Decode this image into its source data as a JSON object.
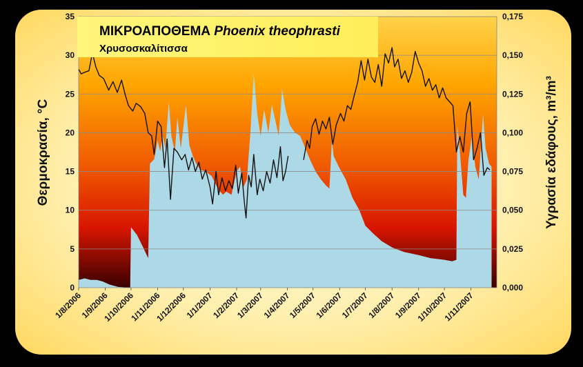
{
  "chart_data": {
    "type": "area",
    "title": "ΜΙΚΡΟΑΠΟΘΕΜΑ",
    "title_species": "Phoenix theophrasti",
    "subtitle": "Χρυσοσκαλίτισσα",
    "ylabel_left": "Θερμοκρασία, °C",
    "ylabel_right": "Υγρασία εδάφους, m³/m³",
    "ylim_left": [
      0,
      35
    ],
    "ylim_right": [
      0,
      0.175
    ],
    "xlim": [
      "2006-08-01",
      "2007-12-01"
    ],
    "left_ticks": [
      "0",
      "5",
      "10",
      "15",
      "20",
      "25",
      "30",
      "35"
    ],
    "right_ticks": [
      "0,000",
      "0,025",
      "0,050",
      "0,075",
      "0,100",
      "0,125",
      "0,150",
      "0,175"
    ],
    "x_ticks": [
      {
        "date": "2006-08-01",
        "label": "1/8/2006"
      },
      {
        "date": "2006-09-01",
        "label": "1/9/2006"
      },
      {
        "date": "2006-10-01",
        "label": "1/10/2006"
      },
      {
        "date": "2006-11-01",
        "label": "1/11/2006"
      },
      {
        "date": "2006-12-01",
        "label": "1/12/2006"
      },
      {
        "date": "2007-01-01",
        "label": "1/1/2007"
      },
      {
        "date": "2007-02-01",
        "label": "1/2/2007"
      },
      {
        "date": "2007-03-01",
        "label": "1/3/2007"
      },
      {
        "date": "2007-04-01",
        "label": "1/4/2007"
      },
      {
        "date": "2007-05-01",
        "label": "1/5/2007"
      },
      {
        "date": "2007-06-01",
        "label": "1/6/2007"
      },
      {
        "date": "2007-07-01",
        "label": "1/7/2007"
      },
      {
        "date": "2007-08-01",
        "label": "1/8/2007"
      },
      {
        "date": "2007-09-01",
        "label": "1/9/2007"
      },
      {
        "date": "2007-10-01",
        "label": "1/10/2007"
      },
      {
        "date": "2007-11-01",
        "label": "1/11/2007"
      }
    ],
    "grid": true,
    "series": [
      {
        "axis": "left",
        "kind": "line",
        "color": "#111111",
        "segments": [
          [
            [
              "2006-08-01",
              28.2
            ],
            [
              "2006-08-04",
              27.6
            ],
            [
              "2006-08-08",
              27.8
            ],
            [
              "2006-08-13",
              28.0
            ],
            [
              "2006-08-17",
              30.3
            ],
            [
              "2006-08-21",
              28.5
            ],
            [
              "2006-08-25",
              27.4
            ],
            [
              "2006-08-30",
              27.0
            ],
            [
              "2006-09-05",
              25.5
            ],
            [
              "2006-09-10",
              26.6
            ],
            [
              "2006-09-15",
              25.2
            ],
            [
              "2006-09-20",
              26.8
            ],
            [
              "2006-09-24",
              25.0
            ],
            [
              "2006-09-28",
              23.5
            ],
            [
              "2006-10-03",
              22.8
            ],
            [
              "2006-10-07",
              23.8
            ],
            [
              "2006-10-12",
              23.4
            ],
            [
              "2006-10-17",
              22.5
            ],
            [
              "2006-10-21",
              20.0
            ],
            [
              "2006-10-25",
              19.6
            ],
            [
              "2006-10-28",
              17.2
            ],
            [
              "2006-11-01",
              21.5
            ],
            [
              "2006-11-05",
              20.8
            ],
            [
              "2006-11-09",
              15.5
            ],
            [
              "2006-11-12",
              19.2
            ],
            [
              "2006-11-16",
              11.4
            ],
            [
              "2006-11-20",
              18.0
            ],
            [
              "2006-11-24",
              17.5
            ],
            [
              "2006-11-29",
              16.5
            ],
            [
              "2006-12-03",
              17.2
            ],
            [
              "2006-12-07",
              15.2
            ],
            [
              "2006-12-11",
              16.8
            ],
            [
              "2006-12-15",
              15.0
            ],
            [
              "2006-12-19",
              16.2
            ],
            [
              "2006-12-23",
              14.0
            ],
            [
              "2006-12-27",
              15.2
            ],
            [
              "2007-01-01",
              13.0
            ],
            [
              "2007-01-04",
              10.8
            ],
            [
              "2007-01-08",
              15.0
            ],
            [
              "2007-01-11",
              12.0
            ],
            [
              "2007-01-15",
              14.2
            ],
            [
              "2007-01-19",
              12.5
            ],
            [
              "2007-01-23",
              13.8
            ],
            [
              "2007-01-27",
              12.8
            ],
            [
              "2007-01-31",
              15.8
            ],
            [
              "2007-02-03",
              12.2
            ],
            [
              "2007-02-07",
              14.8
            ],
            [
              "2007-02-10",
              11.0
            ],
            [
              "2007-02-12",
              9.0
            ],
            [
              "2007-02-15",
              14.5
            ],
            [
              "2007-02-18",
              13.0
            ],
            [
              "2007-02-21",
              17.2
            ],
            [
              "2007-02-25",
              12.0
            ],
            [
              "2007-02-28",
              14.0
            ],
            [
              "2007-03-04",
              12.5
            ],
            [
              "2007-03-08",
              15.0
            ],
            [
              "2007-03-12",
              13.5
            ],
            [
              "2007-03-16",
              16.5
            ],
            [
              "2007-03-20",
              14.2
            ],
            [
              "2007-03-24",
              18.2
            ],
            [
              "2007-03-27",
              13.8
            ],
            [
              "2007-03-30",
              15.0
            ],
            [
              "2007-04-02",
              17.0
            ]
          ],
          [
            [
              "2007-04-20",
              16.5
            ],
            [
              "2007-04-24",
              19.0
            ],
            [
              "2007-04-27",
              18.0
            ],
            [
              "2007-04-30",
              20.8
            ],
            [
              "2007-05-04",
              21.8
            ],
            [
              "2007-05-08",
              19.8
            ],
            [
              "2007-05-12",
              21.5
            ],
            [
              "2007-05-16",
              20.5
            ],
            [
              "2007-05-20",
              22.0
            ],
            [
              "2007-05-24",
              18.5
            ],
            [
              "2007-05-28",
              21.0
            ],
            [
              "2007-06-02",
              22.5
            ],
            [
              "2007-06-06",
              21.5
            ],
            [
              "2007-06-10",
              23.5
            ],
            [
              "2007-06-14",
              23.0
            ],
            [
              "2007-06-18",
              24.8
            ],
            [
              "2007-06-22",
              26.5
            ],
            [
              "2007-06-26",
              29.3
            ],
            [
              "2007-06-30",
              26.8
            ],
            [
              "2007-07-04",
              29.5
            ],
            [
              "2007-07-08",
              27.2
            ],
            [
              "2007-07-12",
              26.5
            ],
            [
              "2007-07-16",
              28.8
            ],
            [
              "2007-07-20",
              26.0
            ],
            [
              "2007-07-24",
              30.2
            ],
            [
              "2007-07-28",
              29.0
            ],
            [
              "2007-08-01",
              31.0
            ],
            [
              "2007-08-04",
              28.5
            ],
            [
              "2007-08-08",
              29.5
            ],
            [
              "2007-08-12",
              27.0
            ],
            [
              "2007-08-16",
              28.0
            ],
            [
              "2007-08-20",
              26.5
            ],
            [
              "2007-08-24",
              27.8
            ],
            [
              "2007-08-28",
              30.5
            ],
            [
              "2007-09-01",
              29.0
            ],
            [
              "2007-09-05",
              28.0
            ],
            [
              "2007-09-09",
              26.0
            ],
            [
              "2007-09-13",
              27.0
            ],
            [
              "2007-09-17",
              25.5
            ],
            [
              "2007-09-21",
              26.2
            ],
            [
              "2007-09-25",
              24.5
            ],
            [
              "2007-09-29",
              25.8
            ],
            [
              "2007-10-03",
              24.5
            ],
            [
              "2007-10-07",
              24.0
            ],
            [
              "2007-10-11",
              23.5
            ],
            [
              "2007-10-15",
              17.5
            ],
            [
              "2007-10-19",
              19.5
            ],
            [
              "2007-10-23",
              17.5
            ],
            [
              "2007-10-27",
              22.5
            ],
            [
              "2007-10-31",
              24.0
            ],
            [
              "2007-11-04",
              16.5
            ],
            [
              "2007-11-08",
              18.0
            ],
            [
              "2007-11-12",
              20.0
            ],
            [
              "2007-11-16",
              14.5
            ],
            [
              "2007-11-20",
              15.5
            ],
            [
              "2007-11-23",
              15.2
            ]
          ]
        ]
      },
      {
        "axis": "right",
        "kind": "area",
        "color": "#add8e6",
        "points": [
          [
            "2006-08-01",
            0.005
          ],
          [
            "2006-08-08",
            0.006
          ],
          [
            "2006-08-15",
            0.005
          ],
          [
            "2006-08-22",
            0.005
          ],
          [
            "2006-08-29",
            0.004
          ],
          [
            "2006-09-06",
            0.002
          ],
          [
            "2006-09-16",
            0.0005
          ],
          [
            "2006-09-30",
            0.0
          ],
          [
            "2006-10-01",
            0.039
          ],
          [
            "2006-10-08",
            0.034
          ],
          [
            "2006-10-16",
            0.025
          ],
          [
            "2006-10-21",
            0.019
          ],
          [
            "2006-10-23",
            0.08
          ],
          [
            "2006-10-28",
            0.083
          ],
          [
            "2006-11-01",
            0.095
          ],
          [
            "2006-11-04",
            0.088
          ],
          [
            "2006-11-07",
            0.098
          ],
          [
            "2006-11-10",
            0.09
          ],
          [
            "2006-11-14",
            0.12
          ],
          [
            "2006-11-17",
            0.098
          ],
          [
            "2006-11-21",
            0.088
          ],
          [
            "2006-11-24",
            0.11
          ],
          [
            "2006-11-28",
            0.09
          ],
          [
            "2006-12-04",
            0.118
          ],
          [
            "2006-12-08",
            0.092
          ],
          [
            "2006-12-12",
            0.085
          ],
          [
            "2006-12-16",
            0.08
          ],
          [
            "2006-12-21",
            0.076
          ],
          [
            "2006-12-27",
            0.075
          ],
          [
            "2007-01-03",
            0.072
          ],
          [
            "2007-01-10",
            0.064
          ],
          [
            "2007-01-16",
            0.06
          ],
          [
            "2007-01-20",
            0.062
          ],
          [
            "2007-01-26",
            0.06
          ],
          [
            "2007-02-01",
            0.075
          ],
          [
            "2007-02-05",
            0.078
          ],
          [
            "2007-02-09",
            0.065
          ],
          [
            "2007-02-13",
            0.07
          ],
          [
            "2007-02-17",
            0.1
          ],
          [
            "2007-02-21",
            0.138
          ],
          [
            "2007-02-25",
            0.112
          ],
          [
            "2007-03-01",
            0.098
          ],
          [
            "2007-03-05",
            0.115
          ],
          [
            "2007-03-10",
            0.1
          ],
          [
            "2007-03-14",
            0.118
          ],
          [
            "2007-03-18",
            0.108
          ],
          [
            "2007-03-22",
            0.098
          ],
          [
            "2007-03-26",
            0.128
          ],
          [
            "2007-03-30",
            0.115
          ],
          [
            "2007-04-04",
            0.105
          ],
          [
            "2007-04-10",
            0.1
          ],
          [
            "2007-04-16",
            0.098
          ],
          [
            "2007-04-22",
            0.09
          ],
          [
            "2007-04-28",
            0.082
          ],
          [
            "2007-05-04",
            0.075
          ],
          [
            "2007-05-10",
            0.07
          ],
          [
            "2007-05-16",
            0.066
          ],
          [
            "2007-05-20",
            0.064
          ],
          [
            "2007-05-23",
            0.095
          ],
          [
            "2007-05-25",
            0.085
          ],
          [
            "2007-05-31",
            0.078
          ],
          [
            "2007-06-08",
            0.07
          ],
          [
            "2007-06-16",
            0.058
          ],
          [
            "2007-06-24",
            0.05
          ],
          [
            "2007-07-01",
            0.04
          ],
          [
            "2007-07-10",
            0.035
          ],
          [
            "2007-07-20",
            0.03
          ],
          [
            "2007-08-01",
            0.026
          ],
          [
            "2007-08-15",
            0.023
          ],
          [
            "2007-09-01",
            0.021
          ],
          [
            "2007-09-15",
            0.019
          ],
          [
            "2007-10-01",
            0.018
          ],
          [
            "2007-10-10",
            0.017
          ],
          [
            "2007-10-15",
            0.018
          ],
          [
            "2007-10-16",
            0.105
          ],
          [
            "2007-10-19",
            0.088
          ],
          [
            "2007-10-23",
            0.06
          ],
          [
            "2007-10-26",
            0.058
          ],
          [
            "2007-10-29",
            0.082
          ],
          [
            "2007-11-02",
            0.098
          ],
          [
            "2007-11-06",
            0.078
          ],
          [
            "2007-11-10",
            0.07
          ],
          [
            "2007-11-15",
            0.112
          ],
          [
            "2007-11-18",
            0.09
          ],
          [
            "2007-11-22",
            0.08
          ],
          [
            "2007-11-25",
            0.078
          ]
        ]
      }
    ]
  }
}
